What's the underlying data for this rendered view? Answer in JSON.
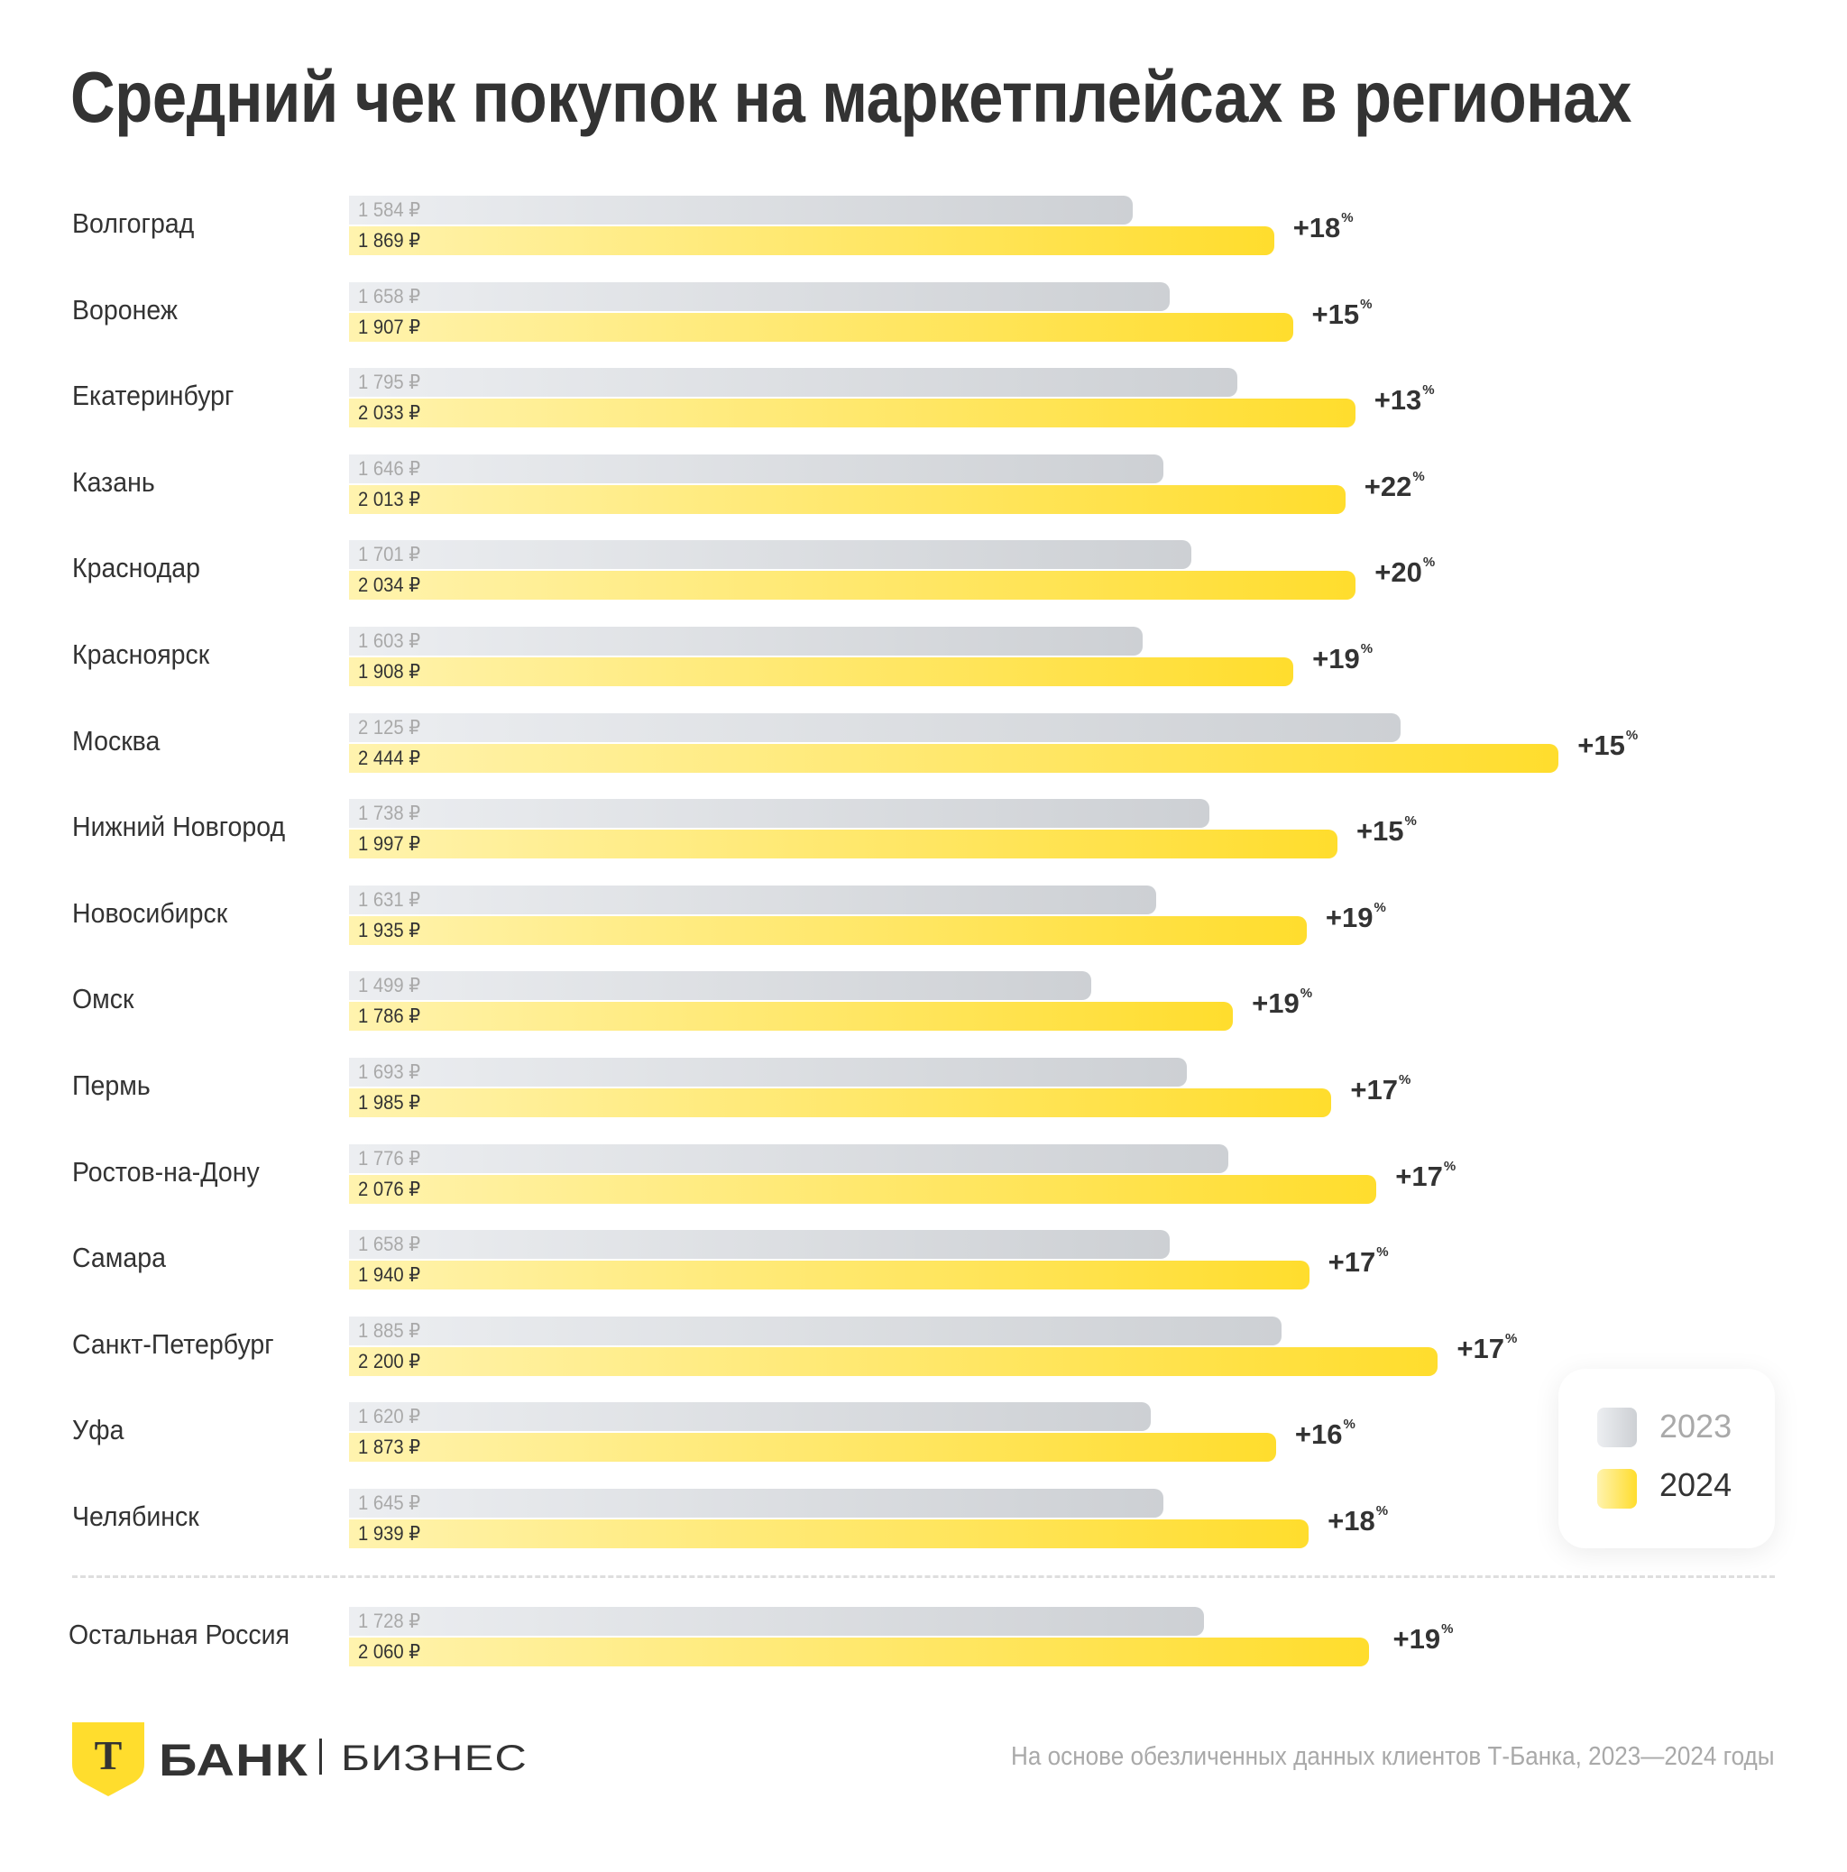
{
  "title": "Средний чек покупок на маркетплейсах в регионах",
  "legend": {
    "y2023": "2023",
    "y2024": "2024"
  },
  "colors": {
    "bar_2023_start": "#eceef1",
    "bar_2023_end": "#cdd0d4",
    "bar_2024_start": "#fff3ae",
    "bar_2024_end": "#ffdd2d",
    "text": "#333333",
    "muted": "#a9a9a9"
  },
  "footnote": "На основе обезличенных данных клиентов Т-Банка, 2023—2024 годы",
  "logo": {
    "letter": "Т",
    "bank": "БАНК",
    "business": "БИЗНЕС"
  },
  "chart_data": {
    "type": "bar",
    "orientation": "horizontal",
    "title": "Средний чек покупок на маркетплейсах в регионах",
    "xlabel": "",
    "ylabel": "",
    "unit": "₽",
    "xlim": [
      0,
      2500
    ],
    "grid": false,
    "legend_position": "bottom-right",
    "categories": [
      "Волгоград",
      "Воронеж",
      "Екатеринбург",
      "Казань",
      "Краснодар",
      "Красноярск",
      "Москва",
      "Нижний Новгород",
      "Новосибирск",
      "Омск",
      "Пермь",
      "Ростов-на-Дону",
      "Самара",
      "Санкт-Петербург",
      "Уфа",
      "Челябинск",
      "Остальная Россия"
    ],
    "series": [
      {
        "name": "2023",
        "values": [
          1584,
          1658,
          1795,
          1646,
          1701,
          1603,
          2125,
          1738,
          1631,
          1499,
          1693,
          1776,
          1658,
          1885,
          1620,
          1645,
          1728
        ],
        "labels": [
          "1 584 ₽",
          "1 658 ₽",
          "1 795 ₽",
          "1 646 ₽",
          "1 701 ₽",
          "1 603 ₽",
          "2 125 ₽",
          "1 738 ₽",
          "1 631 ₽",
          "1 499 ₽",
          "1 693 ₽",
          "1 776 ₽",
          "1 658 ₽",
          "1 885 ₽",
          "1 620 ₽",
          "1 645 ₽",
          "1 728 ₽"
        ]
      },
      {
        "name": "2024",
        "values": [
          1869,
          1907,
          2033,
          2013,
          2034,
          1908,
          2444,
          1997,
          1935,
          1786,
          1985,
          2076,
          1940,
          2200,
          1873,
          1939,
          2060
        ],
        "labels": [
          "1 869 ₽",
          "1 907 ₽",
          "2 033 ₽",
          "2 013 ₽",
          "2 034 ₽",
          "1 908 ₽",
          "2 444 ₽",
          "1 997 ₽",
          "1 935 ₽",
          "1 786 ₽",
          "1 985 ₽",
          "2 076 ₽",
          "1 940 ₽",
          "2 200 ₽",
          "1 873 ₽",
          "1 939 ₽",
          "2 060 ₽"
        ]
      }
    ],
    "growth_labels": [
      "+18",
      "+15",
      "+13",
      "+22",
      "+20",
      "+19",
      "+15",
      "+15",
      "+19",
      "+19",
      "+17",
      "+17",
      "+17",
      "+17",
      "+16",
      "+18",
      "+19"
    ],
    "growth_unit": "%",
    "annotations": [
      "Остальная Россия отделена пунктирной линией"
    ]
  }
}
